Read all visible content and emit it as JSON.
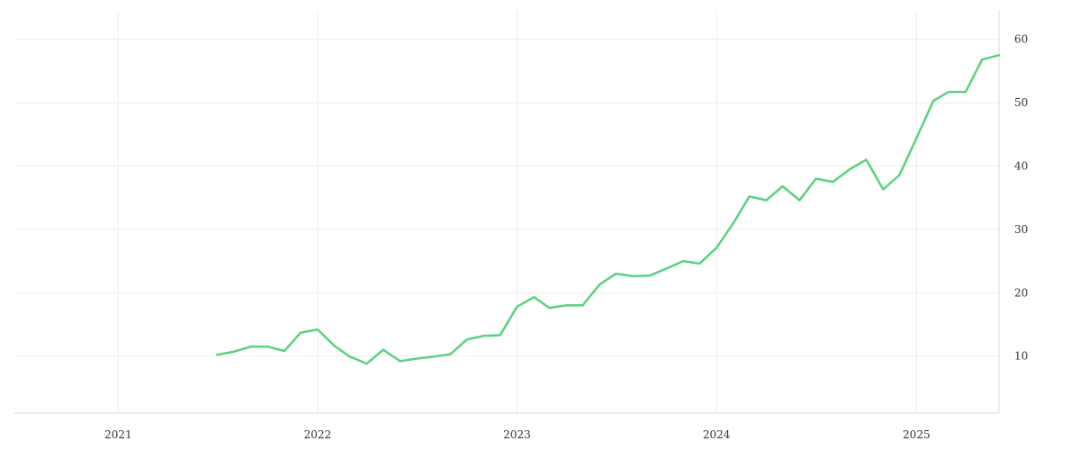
{
  "chart_data": {
    "type": "line",
    "title": "",
    "xlabel": "",
    "ylabel": "",
    "x_tick_labels": [
      "2021",
      "2022",
      "2023",
      "2024",
      "2025"
    ],
    "y_tick_labels": [
      "10",
      "20",
      "30",
      "40",
      "50",
      "60"
    ],
    "y_ticks": [
      10,
      20,
      30,
      40,
      50,
      60
    ],
    "ylim": [
      1,
      64.5
    ],
    "xlim": [
      "2020-06-25",
      "2025-06-01"
    ],
    "grid": true,
    "y_axis_position": "right",
    "series": [
      {
        "color": "#5ad27f",
        "x": [
          "2021-07-01",
          "2021-08-01",
          "2021-09-01",
          "2021-10-01",
          "2021-11-01",
          "2021-12-01",
          "2022-01-01",
          "2022-02-01",
          "2022-03-01",
          "2022-04-01",
          "2022-05-01",
          "2022-06-01",
          "2022-07-01",
          "2022-08-01",
          "2022-09-01",
          "2022-10-01",
          "2022-11-01",
          "2022-12-01",
          "2023-01-01",
          "2023-02-01",
          "2023-03-01",
          "2023-04-01",
          "2023-05-01",
          "2023-06-01",
          "2023-07-01",
          "2023-08-01",
          "2023-09-01",
          "2023-10-01",
          "2023-11-01",
          "2023-12-01",
          "2024-01-01",
          "2024-02-01",
          "2024-03-01",
          "2024-04-01",
          "2024-05-01",
          "2024-06-01",
          "2024-07-01",
          "2024-08-01",
          "2024-09-01",
          "2024-10-01",
          "2024-11-01",
          "2024-12-01",
          "2025-01-01",
          "2025-02-01",
          "2025-03-01",
          "2025-04-01",
          "2025-05-01",
          "2025-06-01"
        ],
        "values": [
          10.2,
          10.7,
          11.5,
          11.5,
          10.8,
          13.7,
          14.2,
          11.6,
          9.9,
          8.8,
          11.0,
          9.2,
          9.6,
          9.9,
          10.3,
          12.6,
          13.2,
          13.3,
          17.8,
          19.3,
          17.6,
          18.0,
          18.0,
          21.3,
          23.0,
          22.6,
          22.7,
          23.8,
          25.0,
          24.6,
          27.1,
          31.0,
          35.2,
          34.6,
          36.8,
          34.6,
          38.0,
          37.5,
          39.5,
          41.0,
          36.3,
          38.6,
          44.4,
          50.3,
          51.7,
          51.7,
          56.8,
          57.5
        ]
      }
    ]
  }
}
